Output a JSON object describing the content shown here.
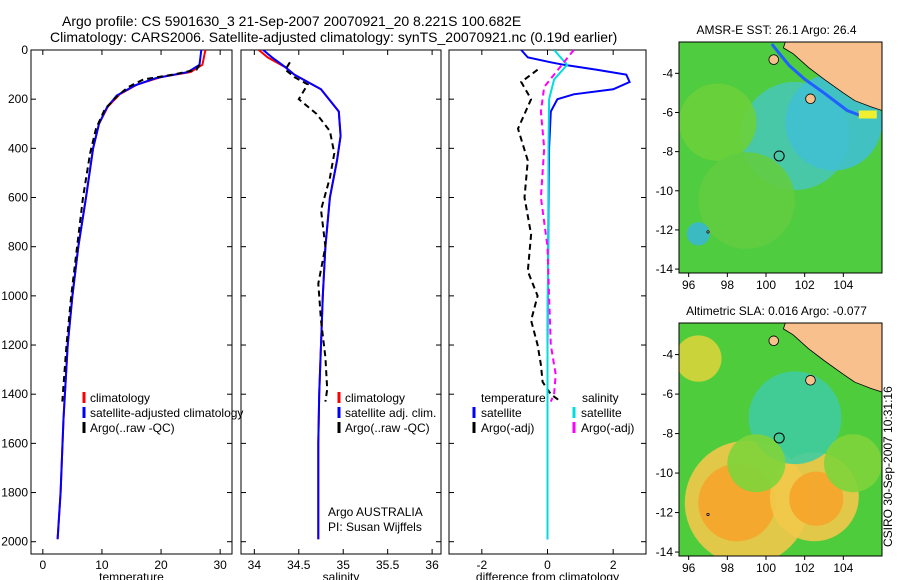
{
  "header": {
    "title_line1": "Argo profile: CS 5901630_3 21-Sep-2007 20070921_20 8.221S 100.682E",
    "title_line2": "Climatology: CARS2006. Satellite-adjusted climatology: synTS_20070921.nc (0.19d earlier)"
  },
  "side_label": "CSIRO 30-Sep-2007 10:31:16",
  "colors": {
    "climatology": "#ff0000",
    "satellite": "#0000ff",
    "argo": "#000000",
    "sal_satellite": "#00dddd",
    "sal_argo": "#ff00ff",
    "sea_green": "#55cc33",
    "land": "#f7c08d"
  },
  "chart_data": [
    {
      "type": "line",
      "id": "temperature",
      "xlabel": "temperature",
      "ylabel": "",
      "xlim": [
        -2,
        32
      ],
      "ylim": [
        2050,
        0
      ],
      "y_inverted": true,
      "xticks": [
        0,
        10,
        20,
        30
      ],
      "yticks": [
        0,
        200,
        400,
        600,
        800,
        1000,
        1200,
        1400,
        1600,
        1800,
        2000
      ],
      "legend": [
        "climatology",
        "satellite-adjusted climatology",
        "Argo(..raw -QC)"
      ],
      "legend_position": "lower-right",
      "series": [
        {
          "name": "climatology",
          "color": "#ff0000",
          "dash": "solid",
          "x": [
            27.5,
            27.0,
            25.0,
            20.0,
            16.0,
            13.0,
            11.0,
            9.5,
            8.5,
            7.3,
            6.0,
            5.0,
            4.2,
            3.5,
            3.0,
            2.5
          ],
          "y": [
            0,
            60,
            90,
            110,
            140,
            180,
            230,
            300,
            400,
            600,
            800,
            1000,
            1200,
            1500,
            1800,
            1990
          ]
        },
        {
          "name": "satellite-adjusted climatology",
          "color": "#0000ff",
          "dash": "solid",
          "x": [
            26.8,
            26.5,
            24.5,
            19.0,
            15.5,
            12.5,
            10.8,
            9.5,
            8.5,
            7.3,
            6.0,
            5.0,
            4.2,
            3.5,
            3.0,
            2.5
          ],
          "y": [
            0,
            60,
            90,
            115,
            145,
            185,
            235,
            300,
            400,
            600,
            800,
            1000,
            1200,
            1500,
            1800,
            1990
          ]
        },
        {
          "name": "Argo(..raw -QC)",
          "color": "#000000",
          "dash": "dashed",
          "x": [
            26.5,
            26.0,
            22.0,
            17.0,
            14.5,
            12.5,
            10.5,
            9.0,
            8.0,
            6.8,
            5.8,
            4.8,
            4.0,
            3.3
          ],
          "y": [
            60,
            80,
            100,
            120,
            150,
            190,
            240,
            320,
            420,
            600,
            800,
            1000,
            1200,
            1430
          ]
        }
      ]
    },
    {
      "type": "line",
      "id": "salinity",
      "xlabel": "salinity",
      "ylabel": "",
      "xlim": [
        33.85,
        36.1
      ],
      "ylim": [
        2050,
        0
      ],
      "y_inverted": true,
      "xticks": [
        34,
        34.5,
        35,
        35.5,
        36
      ],
      "yticks": [],
      "legend": [
        "climatology",
        "satellite adj. clim.",
        "Argo(..raw -QC)"
      ],
      "legend_position": "lower-right",
      "annotations": [
        "Argo AUSTRALIA",
        "PI: Susan Wijffels"
      ],
      "series": [
        {
          "name": "climatology",
          "color": "#ff0000",
          "dash": "solid",
          "x": [
            34.05,
            34.15,
            34.35,
            34.45,
            34.55,
            34.75,
            34.95,
            34.97,
            34.93,
            34.85,
            34.8,
            34.77,
            34.75,
            34.73,
            34.72,
            34.72,
            34.72
          ],
          "y": [
            0,
            30,
            70,
            100,
            120,
            160,
            250,
            350,
            450,
            600,
            800,
            1000,
            1200,
            1400,
            1600,
            1800,
            1990
          ]
        },
        {
          "name": "satellite adj. clim.",
          "color": "#0000ff",
          "dash": "solid",
          "x": [
            34.1,
            34.2,
            34.35,
            34.45,
            34.55,
            34.75,
            34.95,
            34.97,
            34.93,
            34.85,
            34.8,
            34.77,
            34.75,
            34.73,
            34.72,
            34.72,
            34.72
          ],
          "y": [
            0,
            30,
            70,
            100,
            120,
            160,
            250,
            350,
            450,
            600,
            800,
            1000,
            1200,
            1400,
            1600,
            1800,
            1990
          ]
        },
        {
          "name": "Argo(..raw -QC)",
          "color": "#000000",
          "dash": "dashed",
          "x": [
            34.4,
            34.35,
            34.45,
            34.6,
            34.5,
            34.7,
            34.85,
            34.9,
            34.85,
            34.75,
            34.8,
            34.72,
            34.75,
            34.8,
            34.82,
            34.8
          ],
          "y": [
            50,
            80,
            110,
            140,
            200,
            260,
            330,
            420,
            520,
            650,
            800,
            950,
            1100,
            1250,
            1380,
            1430
          ]
        }
      ]
    },
    {
      "type": "line",
      "id": "difference",
      "xlabel": "difference from climatology",
      "ylabel": "",
      "xlim": [
        -3.0,
        3.0
      ],
      "ylim": [
        2050,
        0
      ],
      "y_inverted": true,
      "xticks": [
        -2,
        0,
        2
      ],
      "yticks": [],
      "legend": [
        "temperature",
        "satellite",
        "Argo(-adj)",
        "salinity",
        "satellite",
        "Argo(-adj)"
      ],
      "legend_position": "lower-center",
      "series": [
        {
          "name": "satellite",
          "group": "temperature",
          "color": "#0000ff",
          "dash": "solid",
          "x": [
            -0.8,
            -0.6,
            0.1,
            0.5,
            1.5,
            2.4,
            2.5,
            2.0,
            0.8,
            0.3,
            0.1,
            0.05,
            0.02,
            0.0,
            0.0,
            0.0
          ],
          "y": [
            0,
            30,
            50,
            60,
            80,
            100,
            130,
            160,
            180,
            200,
            250,
            400,
            800,
            1200,
            1600,
            1990
          ]
        },
        {
          "name": "Argo(-adj)",
          "group": "temperature",
          "color": "#000000",
          "dash": "dashed",
          "x": [
            -0.3,
            -0.8,
            -0.5,
            -0.9,
            -0.6,
            -0.7,
            -0.5,
            -0.6,
            -0.3,
            -0.5,
            -0.3,
            -0.2,
            -0.15,
            0.1,
            0.3,
            0.35
          ],
          "y": [
            80,
            130,
            200,
            320,
            450,
            600,
            750,
            900,
            1000,
            1100,
            1200,
            1280,
            1350,
            1400,
            1420,
            1430
          ]
        },
        {
          "name": "satellite",
          "group": "salinity",
          "color": "#00dddd",
          "dash": "solid",
          "x": [
            0.2,
            0.4,
            0.6,
            0.2,
            0.05,
            0.03,
            0.02,
            0.0,
            0.0,
            0.0
          ],
          "y": [
            0,
            30,
            60,
            120,
            200,
            400,
            800,
            1200,
            1600,
            1990
          ]
        },
        {
          "name": "Argo(-adj)",
          "group": "salinity",
          "color": "#ff00ff",
          "dash": "dashed",
          "x": [
            0.8,
            0.5,
            0.2,
            -0.1,
            -0.2,
            -0.1,
            -0.2,
            0.0,
            0.05,
            0.1,
            0.25,
            0.2,
            0.1
          ],
          "y": [
            0,
            50,
            100,
            150,
            250,
            400,
            600,
            800,
            1000,
            1200,
            1320,
            1400,
            1430
          ]
        }
      ]
    },
    {
      "type": "heatmap",
      "id": "sst_map",
      "title": "AMSR-E SST: 26.1  Argo: 26.4",
      "xlim": [
        95.5,
        106
      ],
      "ylim": [
        -14.2,
        -2.4
      ],
      "xticks": [
        96,
        98,
        100,
        102,
        104
      ],
      "yticks": [
        -4,
        -6,
        -8,
        -10,
        -12,
        -14
      ],
      "argo_position": {
        "lon": 100.682,
        "lat": -8.221
      }
    },
    {
      "type": "heatmap",
      "id": "sla_map",
      "title": "Altimetric SLA: 0.016  Argo: -0.077",
      "xlim": [
        95.5,
        106
      ],
      "ylim": [
        -14.2,
        -2.4
      ],
      "xticks": [
        96,
        98,
        100,
        102,
        104
      ],
      "yticks": [
        -4,
        -6,
        -8,
        -10,
        -12,
        -14
      ],
      "argo_position": {
        "lon": 100.682,
        "lat": -8.221
      }
    }
  ]
}
